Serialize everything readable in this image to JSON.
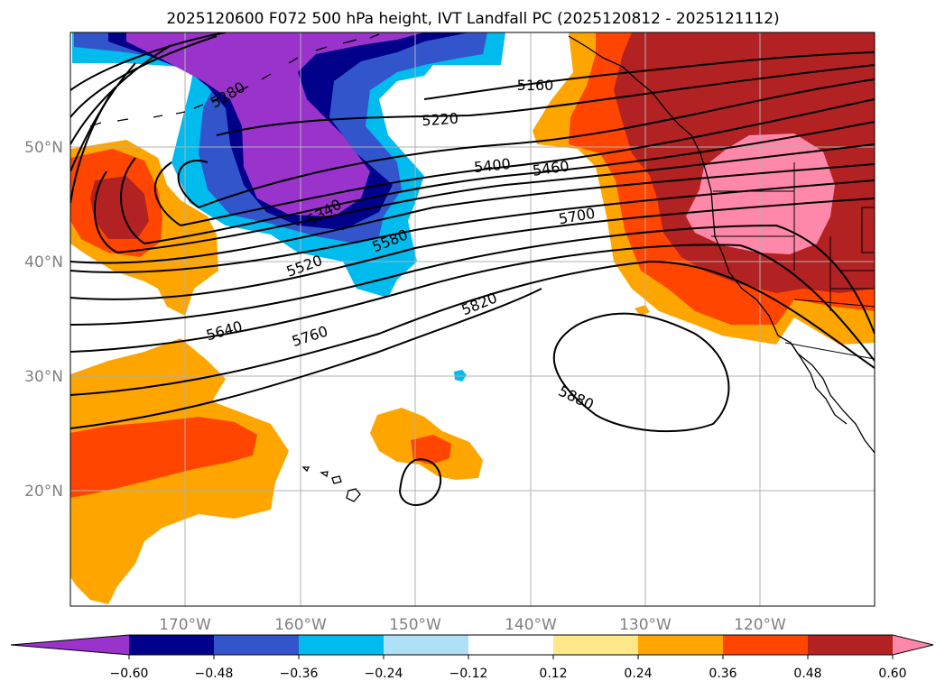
{
  "title": "2025120600 F072 500 hPa height, IVT Landfall PC (2025120812 - 2025121112)",
  "map": {
    "lat_labels": [
      "50°N",
      "40°N",
      "30°N",
      "20°N"
    ],
    "lon_labels": [
      "170°W",
      "160°W",
      "150°W",
      "140°W",
      "130°W",
      "120°W"
    ],
    "contour_labels": [
      "5160",
      "5220",
      "5280",
      "5340",
      "5400",
      "5460",
      "5520",
      "5580",
      "5640",
      "5700",
      "5760",
      "5820",
      "5880"
    ],
    "fill_colors": {
      "neg_extreme": "#9933cc",
      "neg_060": "#00008b",
      "neg_048": "#3355cc",
      "neg_036": "#00bbee",
      "neg_024": "#aee0f8",
      "neutral": "#ffffff",
      "pos_012": "#ffe88a",
      "pos_024": "#ffa500",
      "pos_036": "#ff4500",
      "pos_048": "#b22222",
      "pos_060": "#ff88aa"
    }
  },
  "colorbar": {
    "ticks": [
      "−0.60",
      "−0.48",
      "−0.36",
      "−0.24",
      "−0.12",
      "0.12",
      "0.24",
      "0.36",
      "0.48",
      "0.60"
    ],
    "colors": [
      "#9933cc",
      "#00008b",
      "#3355cc",
      "#00bbee",
      "#aee0f8",
      "#ffffff",
      "#ffe88a",
      "#ffa500",
      "#ff4500",
      "#b22222",
      "#ff88aa"
    ]
  }
}
